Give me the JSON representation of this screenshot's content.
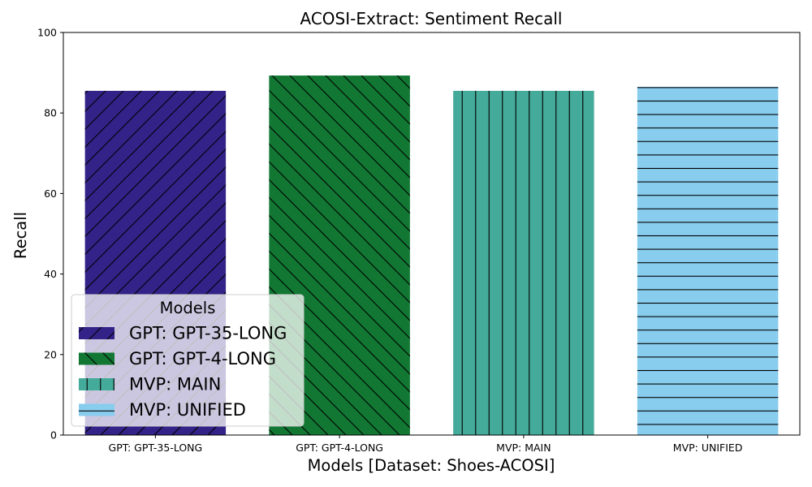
{
  "chart_data": {
    "type": "bar",
    "title": "ACOSI-Extract: Sentiment Recall",
    "xlabel": "Models [Dataset: Shoes-ACOSI]",
    "ylabel": "Recall",
    "ylim": [
      0,
      100
    ],
    "yticks": [
      0,
      20,
      40,
      60,
      80,
      100
    ],
    "grid": false,
    "categories": [
      "GPT: GPT-35-LONG",
      "GPT: GPT-4-LONG",
      "MVP: MAIN",
      "MVP: UNIFIED"
    ],
    "values": [
      85.5,
      89.3,
      85.5,
      86.5
    ],
    "colors": [
      "#332288",
      "#117733",
      "#44AA99",
      "#88CCEE"
    ],
    "hatches": [
      "diagonal-up",
      "diagonal-down",
      "vertical",
      "horizontal"
    ],
    "legend": {
      "title": "Models",
      "placement": "lower-left",
      "entries": [
        "GPT: GPT-35-LONG",
        "GPT: GPT-4-LONG",
        "MVP: MAIN",
        "MVP: UNIFIED"
      ]
    }
  }
}
